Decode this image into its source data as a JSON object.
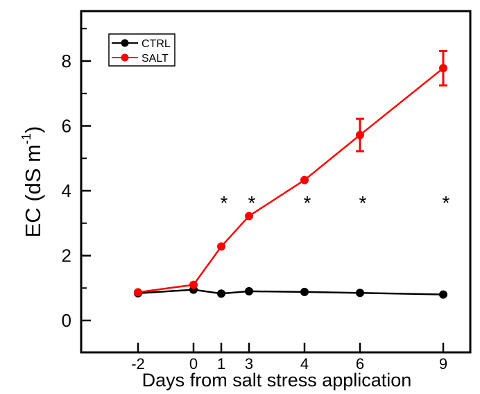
{
  "chart_data": {
    "type": "line",
    "title": "",
    "xlabel": "Days from salt stress application",
    "ylabel_main": "EC (dS m",
    "ylabel_sup": "-1",
    "ylabel_close": ")",
    "categories": [
      "-2",
      "0",
      "1",
      "3",
      "4",
      "6",
      "9"
    ],
    "ylim": [
      -1,
      9.6
    ],
    "yticks": [
      "0",
      "2",
      "4",
      "6",
      "8"
    ],
    "grid": false,
    "legend_position": "top-left",
    "series": [
      {
        "name": "CTRL",
        "color": "#000000",
        "values": [
          0.84,
          0.95,
          0.83,
          0.9,
          0.88,
          0.85,
          0.8
        ],
        "errors": [
          0.03,
          0.03,
          0.03,
          0.03,
          0.03,
          0.03,
          0.03
        ]
      },
      {
        "name": "SALT",
        "color": "#ff0000",
        "values": [
          0.87,
          1.1,
          2.28,
          3.22,
          4.33,
          5.72,
          7.78
        ],
        "errors": [
          0.03,
          0.05,
          0.06,
          0.07,
          0.06,
          0.5,
          0.53
        ]
      }
    ],
    "annotations": [
      {
        "category": "1",
        "text": "*"
      },
      {
        "category": "3",
        "text": "*"
      },
      {
        "category": "4",
        "text": "*"
      },
      {
        "category": "6",
        "text": "*"
      },
      {
        "category": "9",
        "text": "*"
      }
    ]
  }
}
